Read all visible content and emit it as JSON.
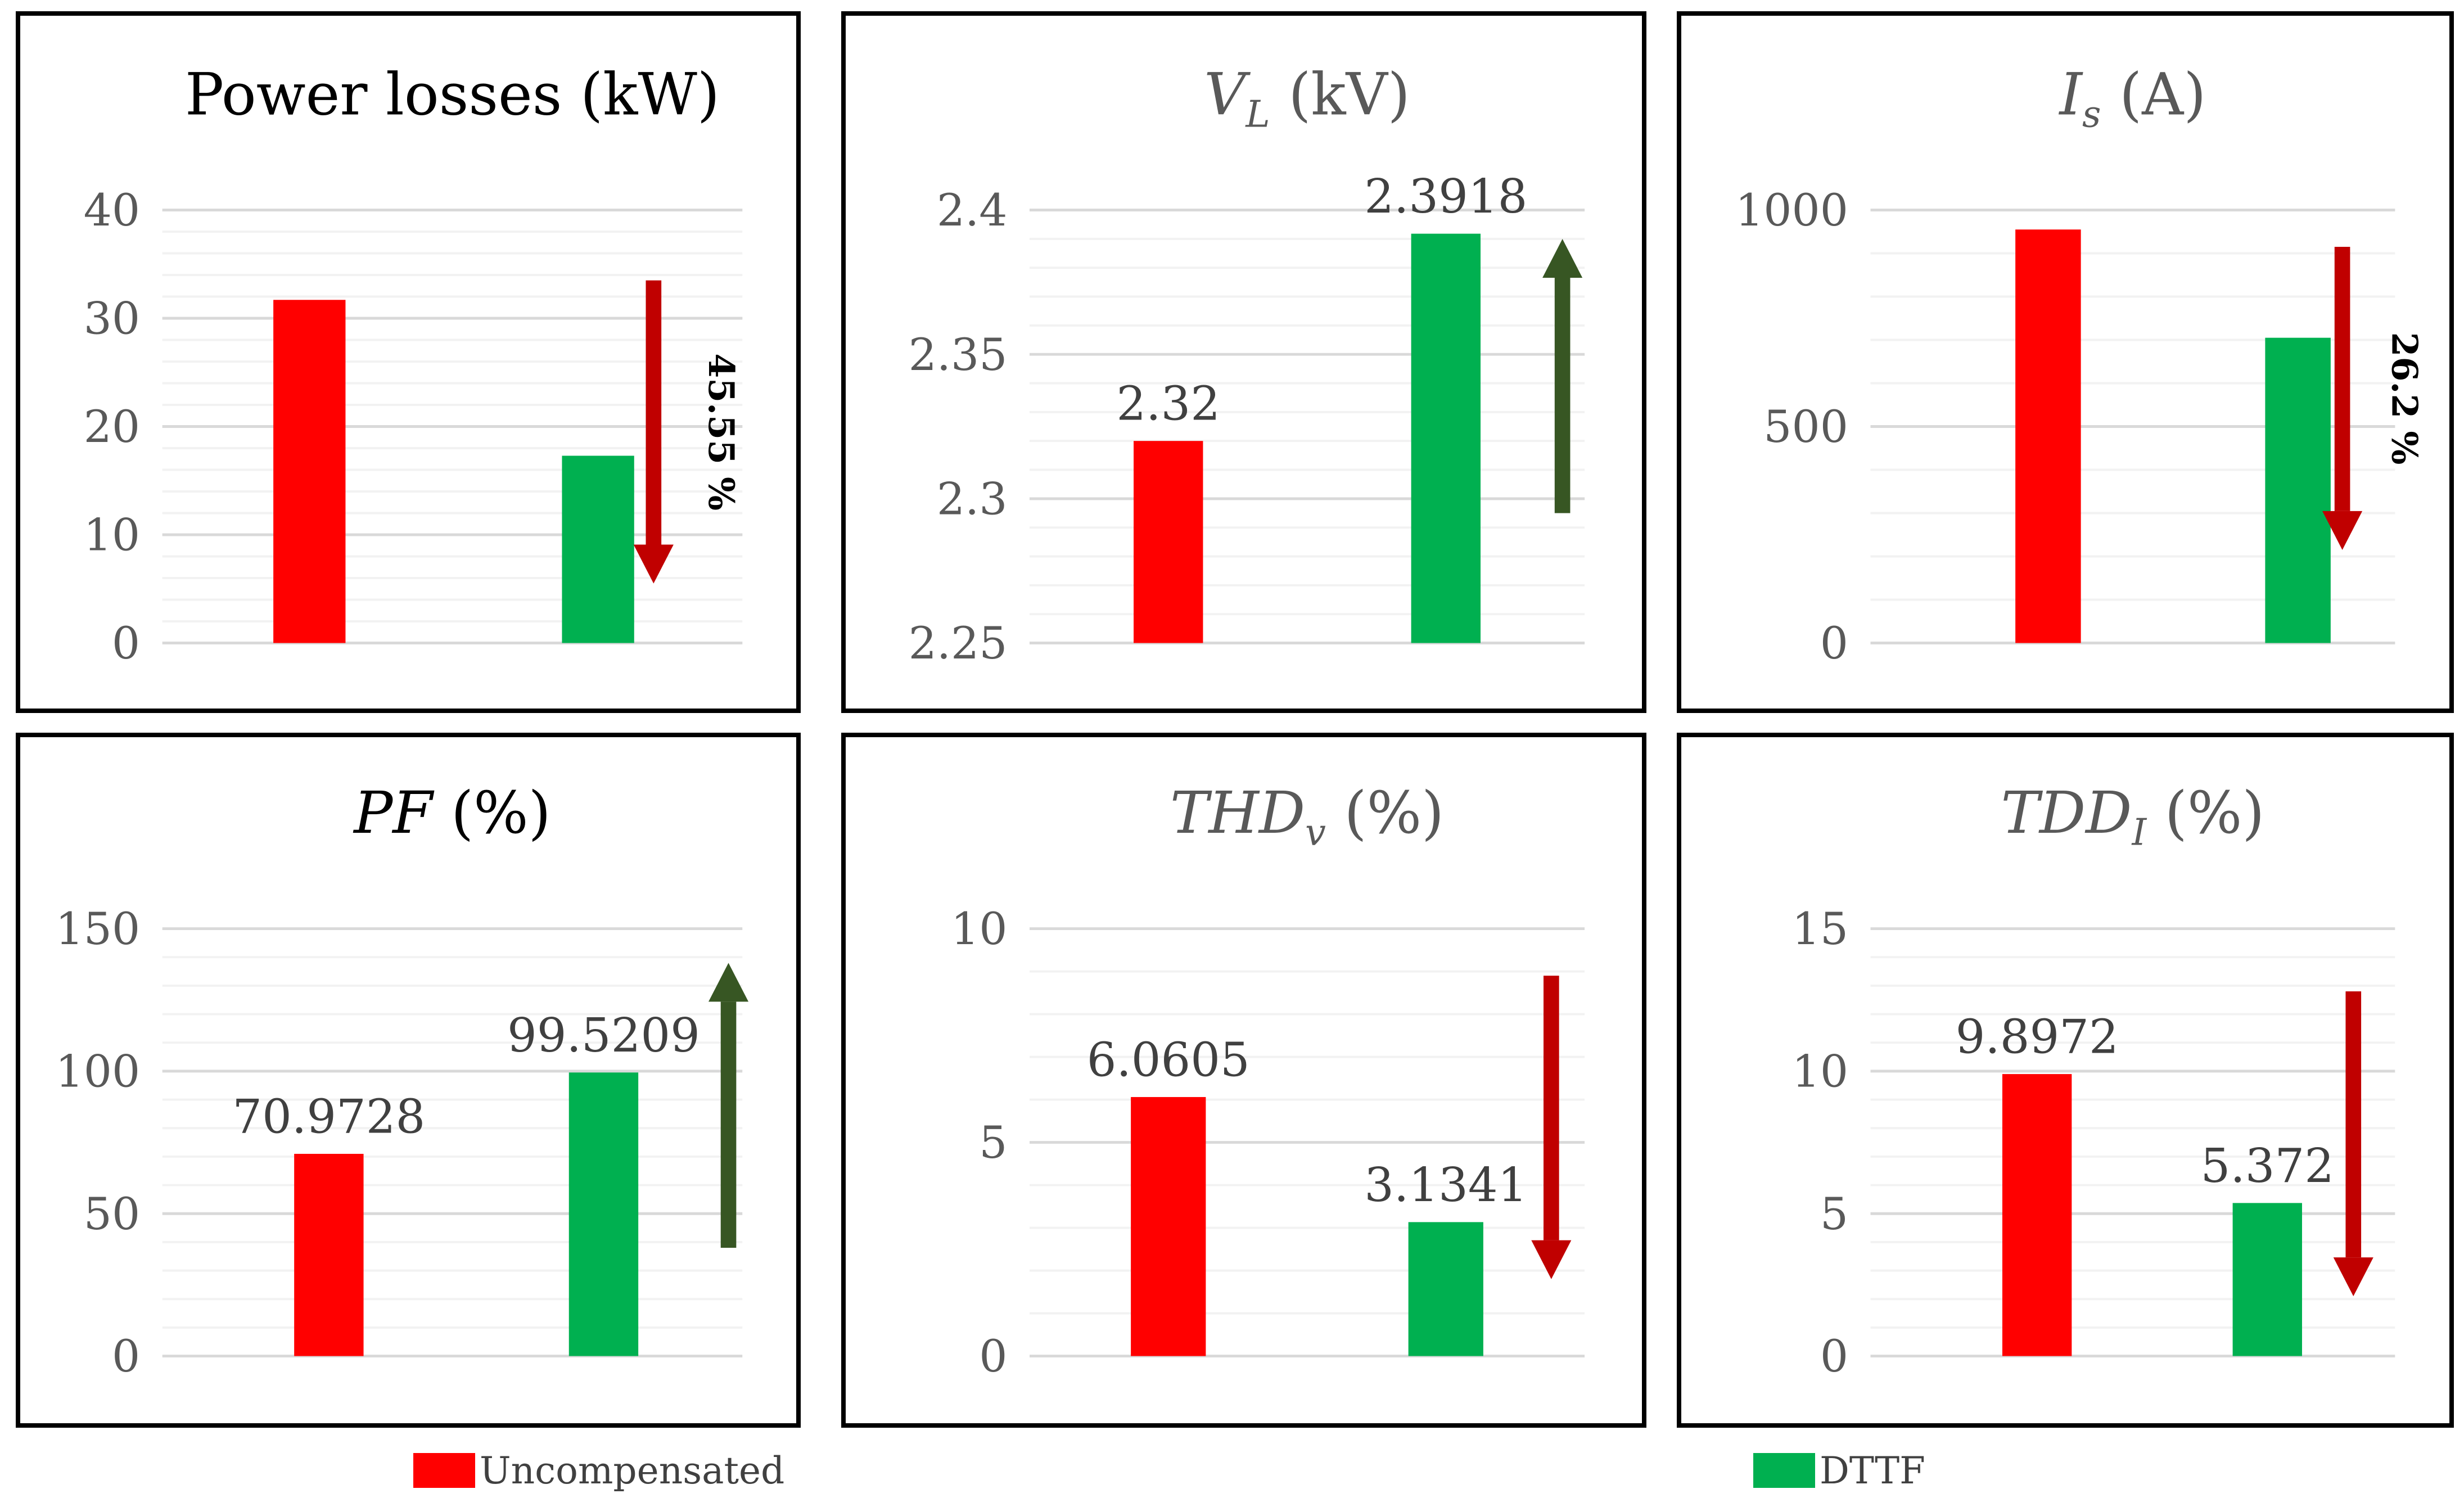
{
  "colors": {
    "uncompensated": "#ff0000",
    "dttf": "#00b050",
    "arrow_down": "#c00000",
    "arrow_up": "#375623",
    "grid_major": "#d9d9d9",
    "grid_minor": "#f2f2f2",
    "tick_text": "#595959",
    "label_text": "#404040"
  },
  "legend": {
    "uncompensated_label": "Uncompensated",
    "dttf_label": "DTTF"
  },
  "chart_data": [
    {
      "type": "bar",
      "title_main": "Power losses (kW)",
      "title_sub": "",
      "title_suffix": "",
      "title_italic": false,
      "title_color": "#000000",
      "categories": [
        "Uncompensated",
        "DTTF"
      ],
      "values": [
        31.7,
        17.3
      ],
      "ylim": [
        0,
        40
      ],
      "yticks": [
        0,
        10,
        20,
        30,
        40
      ],
      "minor_step": 2,
      "data_labels": [
        "",
        ""
      ],
      "change_label": "45.55 %",
      "arrow": {
        "direction": "down",
        "from": 33.5,
        "to": 5.5
      }
    },
    {
      "type": "bar",
      "title_main": "V",
      "title_sub": "L",
      "title_suffix": " (kV)",
      "title_italic": true,
      "title_color": "#595959",
      "categories": [
        "Uncompensated",
        "DTTF"
      ],
      "values": [
        2.32,
        2.3918
      ],
      "ylim": [
        2.25,
        2.4
      ],
      "yticks": [
        2.25,
        2.3,
        2.35,
        2.4
      ],
      "minor_step": 0.01,
      "data_labels": [
        "2.32",
        "2.3918"
      ],
      "change_label": "",
      "arrow": {
        "direction": "up",
        "from": 2.295,
        "to": 2.39
      }
    },
    {
      "type": "bar",
      "title_main": "I",
      "title_sub": "s",
      "title_suffix": " (A)",
      "title_italic": true,
      "title_color": "#595959",
      "categories": [
        "Uncompensated",
        "DTTF"
      ],
      "values": [
        955,
        705
      ],
      "ylim": [
        0,
        1000
      ],
      "yticks": [
        0,
        500,
        1000
      ],
      "minor_step": 100,
      "data_labels": [
        "",
        ""
      ],
      "change_label": "26.2 %",
      "arrow": {
        "direction": "down",
        "from": 915,
        "to": 215
      }
    },
    {
      "type": "bar",
      "title_main": "PF",
      "title_sub": "",
      "title_suffix": " (%)",
      "title_italic": true,
      "title_color": "#000000",
      "categories": [
        "Uncompensated",
        "DTTF"
      ],
      "values": [
        70.9728,
        99.5209
      ],
      "ylim": [
        0,
        150
      ],
      "yticks": [
        0,
        50,
        100,
        150
      ],
      "minor_step": 10,
      "data_labels": [
        "70.9728",
        "99.5209"
      ],
      "change_label": "",
      "arrow": {
        "direction": "up",
        "from": 38,
        "to": 138
      }
    },
    {
      "type": "bar",
      "title_main": "THD",
      "title_sub": "v",
      "title_suffix": " (%)",
      "title_italic": true,
      "title_color": "#595959",
      "categories": [
        "Uncompensated",
        "DTTF"
      ],
      "values": [
        6.0605,
        3.1341
      ],
      "ylim": [
        0,
        10
      ],
      "yticks": [
        0,
        5,
        10
      ],
      "minor_step": 1,
      "data_labels": [
        "6.0605",
        "3.1341"
      ],
      "change_label": "",
      "arrow": {
        "direction": "down",
        "from": 8.9,
        "to": 1.8
      }
    },
    {
      "type": "bar",
      "title_main": "TDD",
      "title_sub": "I",
      "title_suffix": " (%)",
      "title_italic": true,
      "title_color": "#595959",
      "categories": [
        "Uncompensated",
        "DTTF"
      ],
      "values": [
        9.8972,
        5.372
      ],
      "ylim": [
        0,
        15
      ],
      "yticks": [
        0,
        5,
        10,
        15
      ],
      "minor_step": 1,
      "data_labels": [
        "9.8972",
        "5.372"
      ],
      "change_label": "",
      "arrow": {
        "direction": "down",
        "from": 12.8,
        "to": 2.1
      }
    }
  ]
}
